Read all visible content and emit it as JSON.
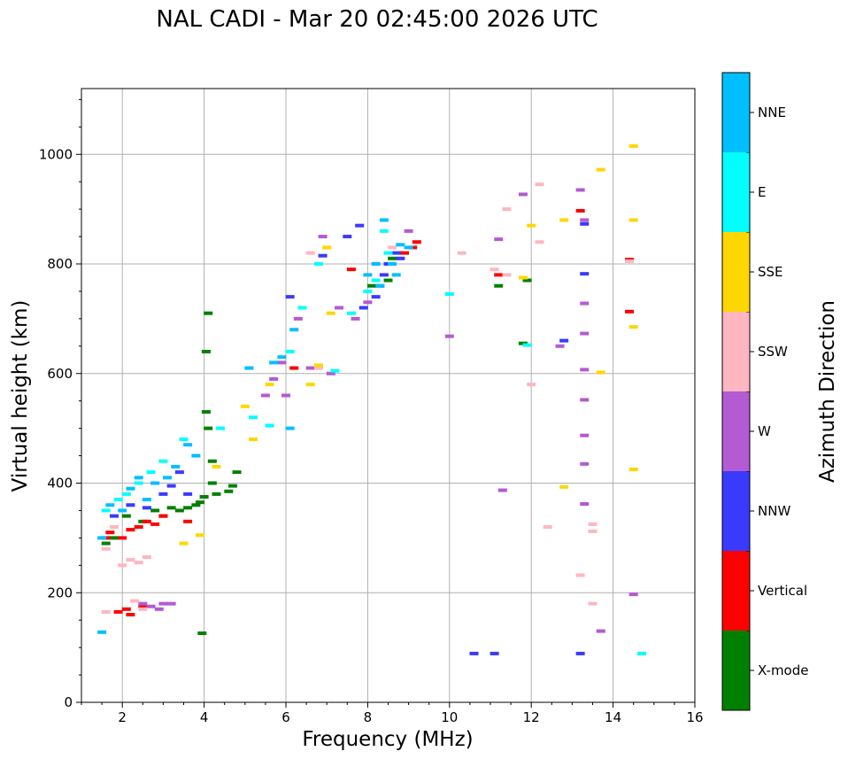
{
  "chart_data": {
    "type": "scatter",
    "title": "NAL CADI - Mar 20 02:45:00 2026 UTC",
    "xlabel": "Frequency (MHz)",
    "ylabel": "Virtual height (km)",
    "xlim": [
      1,
      16
    ],
    "ylim": [
      0,
      1120
    ],
    "xticks": [
      2,
      4,
      6,
      8,
      10,
      12,
      14,
      16
    ],
    "yticks": [
      0,
      200,
      400,
      600,
      800,
      1000
    ],
    "xtick_labels": [
      "2",
      "4",
      "6",
      "8",
      "10",
      "12",
      "14",
      "16"
    ],
    "ytick_labels": [
      "0",
      "200",
      "400",
      "600",
      "800",
      "1000"
    ],
    "grid": true,
    "colorbar": {
      "label": "Azimuth Direction",
      "categories": [
        "X-mode",
        "Vertical",
        "NNW",
        "W",
        "SSW",
        "SSE",
        "E",
        "NNE"
      ],
      "colors": [
        "#008000",
        "#ff0000",
        "#3a3aff",
        "#b45ad2",
        "#ffb6c1",
        "#ffd700",
        "#00ffff",
        "#00bfff"
      ]
    },
    "series": [
      {
        "name": "X-mode",
        "points": [
          [
            1.6,
            290
          ],
          [
            1.8,
            300
          ],
          [
            2.1,
            340
          ],
          [
            2.5,
            330
          ],
          [
            2.8,
            350
          ],
          [
            3.0,
            340
          ],
          [
            3.2,
            355
          ],
          [
            3.4,
            350
          ],
          [
            3.6,
            355
          ],
          [
            3.8,
            360
          ],
          [
            3.9,
            365
          ],
          [
            4.0,
            375
          ],
          [
            4.2,
            400
          ],
          [
            4.2,
            440
          ],
          [
            4.1,
            500
          ],
          [
            4.05,
            530
          ],
          [
            4.05,
            640
          ],
          [
            4.1,
            710
          ],
          [
            4.3,
            380
          ],
          [
            4.6,
            385
          ],
          [
            4.7,
            395
          ],
          [
            4.8,
            420
          ],
          [
            3.95,
            126
          ],
          [
            8.1,
            760
          ],
          [
            8.5,
            770
          ],
          [
            8.6,
            810
          ],
          [
            11.2,
            760
          ],
          [
            11.9,
            770
          ],
          [
            11.8,
            655
          ]
        ]
      },
      {
        "name": "Vertical",
        "points": [
          [
            1.6,
            300
          ],
          [
            1.7,
            310
          ],
          [
            2.0,
            300
          ],
          [
            2.2,
            315
          ],
          [
            2.4,
            320
          ],
          [
            2.6,
            330
          ],
          [
            2.8,
            325
          ],
          [
            3.0,
            340
          ],
          [
            1.9,
            165
          ],
          [
            2.1,
            170
          ],
          [
            2.2,
            160
          ],
          [
            2.5,
            175
          ],
          [
            3.6,
            330
          ],
          [
            6.2,
            610
          ],
          [
            7.6,
            790
          ],
          [
            8.9,
            820
          ],
          [
            9.1,
            830
          ],
          [
            9.2,
            840
          ],
          [
            11.2,
            780
          ],
          [
            13.2,
            897
          ],
          [
            14.4,
            808
          ],
          [
            14.4,
            713
          ]
        ]
      },
      {
        "name": "NNW",
        "points": [
          [
            1.8,
            340
          ],
          [
            2.2,
            360
          ],
          [
            2.6,
            355
          ],
          [
            3.0,
            380
          ],
          [
            3.2,
            395
          ],
          [
            3.4,
            420
          ],
          [
            3.6,
            380
          ],
          [
            6.1,
            740
          ],
          [
            6.9,
            815
          ],
          [
            7.5,
            850
          ],
          [
            7.8,
            870
          ],
          [
            7.9,
            720
          ],
          [
            8.2,
            740
          ],
          [
            8.3,
            760
          ],
          [
            8.4,
            780
          ],
          [
            8.5,
            800
          ],
          [
            8.7,
            820
          ],
          [
            8.8,
            810
          ],
          [
            13.3,
            782
          ],
          [
            13.2,
            89
          ],
          [
            11.1,
            89
          ],
          [
            10.6,
            89
          ],
          [
            12.8,
            660
          ],
          [
            13.3,
            873
          ]
        ]
      },
      {
        "name": "W",
        "points": [
          [
            2.5,
            180
          ],
          [
            2.7,
            175
          ],
          [
            2.9,
            170
          ],
          [
            3.0,
            180
          ],
          [
            3.2,
            180
          ],
          [
            5.5,
            560
          ],
          [
            5.7,
            590
          ],
          [
            5.9,
            620
          ],
          [
            6.0,
            560
          ],
          [
            6.3,
            700
          ],
          [
            6.6,
            610
          ],
          [
            6.9,
            850
          ],
          [
            7.1,
            600
          ],
          [
            7.3,
            720
          ],
          [
            7.7,
            700
          ],
          [
            8.0,
            730
          ],
          [
            9.0,
            860
          ],
          [
            10.0,
            668
          ],
          [
            11.3,
            387
          ],
          [
            11.2,
            845
          ],
          [
            11.8,
            927
          ],
          [
            13.2,
            935
          ],
          [
            13.3,
            880
          ],
          [
            13.3,
            728
          ],
          [
            13.3,
            673
          ],
          [
            13.3,
            607
          ],
          [
            13.3,
            552
          ],
          [
            13.3,
            487
          ],
          [
            13.3,
            435
          ],
          [
            13.3,
            362
          ],
          [
            13.7,
            130
          ],
          [
            14.5,
            197
          ],
          [
            12.7,
            650
          ]
        ]
      },
      {
        "name": "SSW",
        "points": [
          [
            1.6,
            280
          ],
          [
            1.8,
            320
          ],
          [
            2.0,
            250
          ],
          [
            2.2,
            260
          ],
          [
            2.4,
            255
          ],
          [
            2.6,
            265
          ],
          [
            2.3,
            185
          ],
          [
            2.5,
            170
          ],
          [
            1.6,
            165
          ],
          [
            6.6,
            820
          ],
          [
            6.8,
            610
          ],
          [
            8.6,
            830
          ],
          [
            10.3,
            820
          ],
          [
            11.1,
            790
          ],
          [
            11.4,
            780
          ],
          [
            11.4,
            900
          ],
          [
            12.0,
            580
          ],
          [
            12.2,
            945
          ],
          [
            12.2,
            840
          ],
          [
            12.4,
            320
          ],
          [
            13.2,
            232
          ],
          [
            13.5,
            325
          ],
          [
            13.5,
            312
          ],
          [
            13.5,
            180
          ],
          [
            14.4,
            805
          ]
        ]
      },
      {
        "name": "SSE",
        "points": [
          [
            3.5,
            290
          ],
          [
            3.9,
            305
          ],
          [
            4.3,
            430
          ],
          [
            5.0,
            540
          ],
          [
            5.2,
            480
          ],
          [
            5.6,
            580
          ],
          [
            6.6,
            580
          ],
          [
            6.8,
            615
          ],
          [
            7.0,
            830
          ],
          [
            7.1,
            710
          ],
          [
            11.8,
            775
          ],
          [
            12.0,
            870
          ],
          [
            12.8,
            880
          ],
          [
            12.8,
            393
          ],
          [
            13.7,
            972
          ],
          [
            13.7,
            602
          ],
          [
            14.5,
            1015
          ],
          [
            14.5,
            880
          ],
          [
            14.5,
            685
          ],
          [
            14.5,
            425
          ]
        ]
      },
      {
        "name": "E",
        "points": [
          [
            1.6,
            350
          ],
          [
            1.9,
            370
          ],
          [
            2.1,
            380
          ],
          [
            2.4,
            400
          ],
          [
            2.7,
            420
          ],
          [
            3.0,
            440
          ],
          [
            3.5,
            480
          ],
          [
            4.4,
            500
          ],
          [
            5.2,
            520
          ],
          [
            5.6,
            505
          ],
          [
            6.1,
            640
          ],
          [
            6.4,
            720
          ],
          [
            6.8,
            800
          ],
          [
            7.2,
            605
          ],
          [
            7.6,
            710
          ],
          [
            8.0,
            750
          ],
          [
            8.2,
            770
          ],
          [
            8.4,
            860
          ],
          [
            8.5,
            820
          ],
          [
            10.0,
            745
          ],
          [
            11.9,
            652
          ],
          [
            14.7,
            89
          ]
        ]
      },
      {
        "name": "NNE",
        "points": [
          [
            1.5,
            128
          ],
          [
            1.5,
            300
          ],
          [
            1.7,
            360
          ],
          [
            2.0,
            350
          ],
          [
            2.2,
            390
          ],
          [
            2.4,
            410
          ],
          [
            2.6,
            370
          ],
          [
            2.8,
            400
          ],
          [
            3.1,
            410
          ],
          [
            3.3,
            430
          ],
          [
            3.6,
            470
          ],
          [
            3.8,
            450
          ],
          [
            5.1,
            610
          ],
          [
            5.7,
            620
          ],
          [
            5.9,
            630
          ],
          [
            6.1,
            500
          ],
          [
            6.2,
            680
          ],
          [
            8.0,
            780
          ],
          [
            8.2,
            800
          ],
          [
            8.3,
            760
          ],
          [
            8.4,
            880
          ],
          [
            8.6,
            800
          ],
          [
            8.8,
            835
          ],
          [
            9.0,
            830
          ],
          [
            8.7,
            780
          ]
        ]
      }
    ]
  }
}
